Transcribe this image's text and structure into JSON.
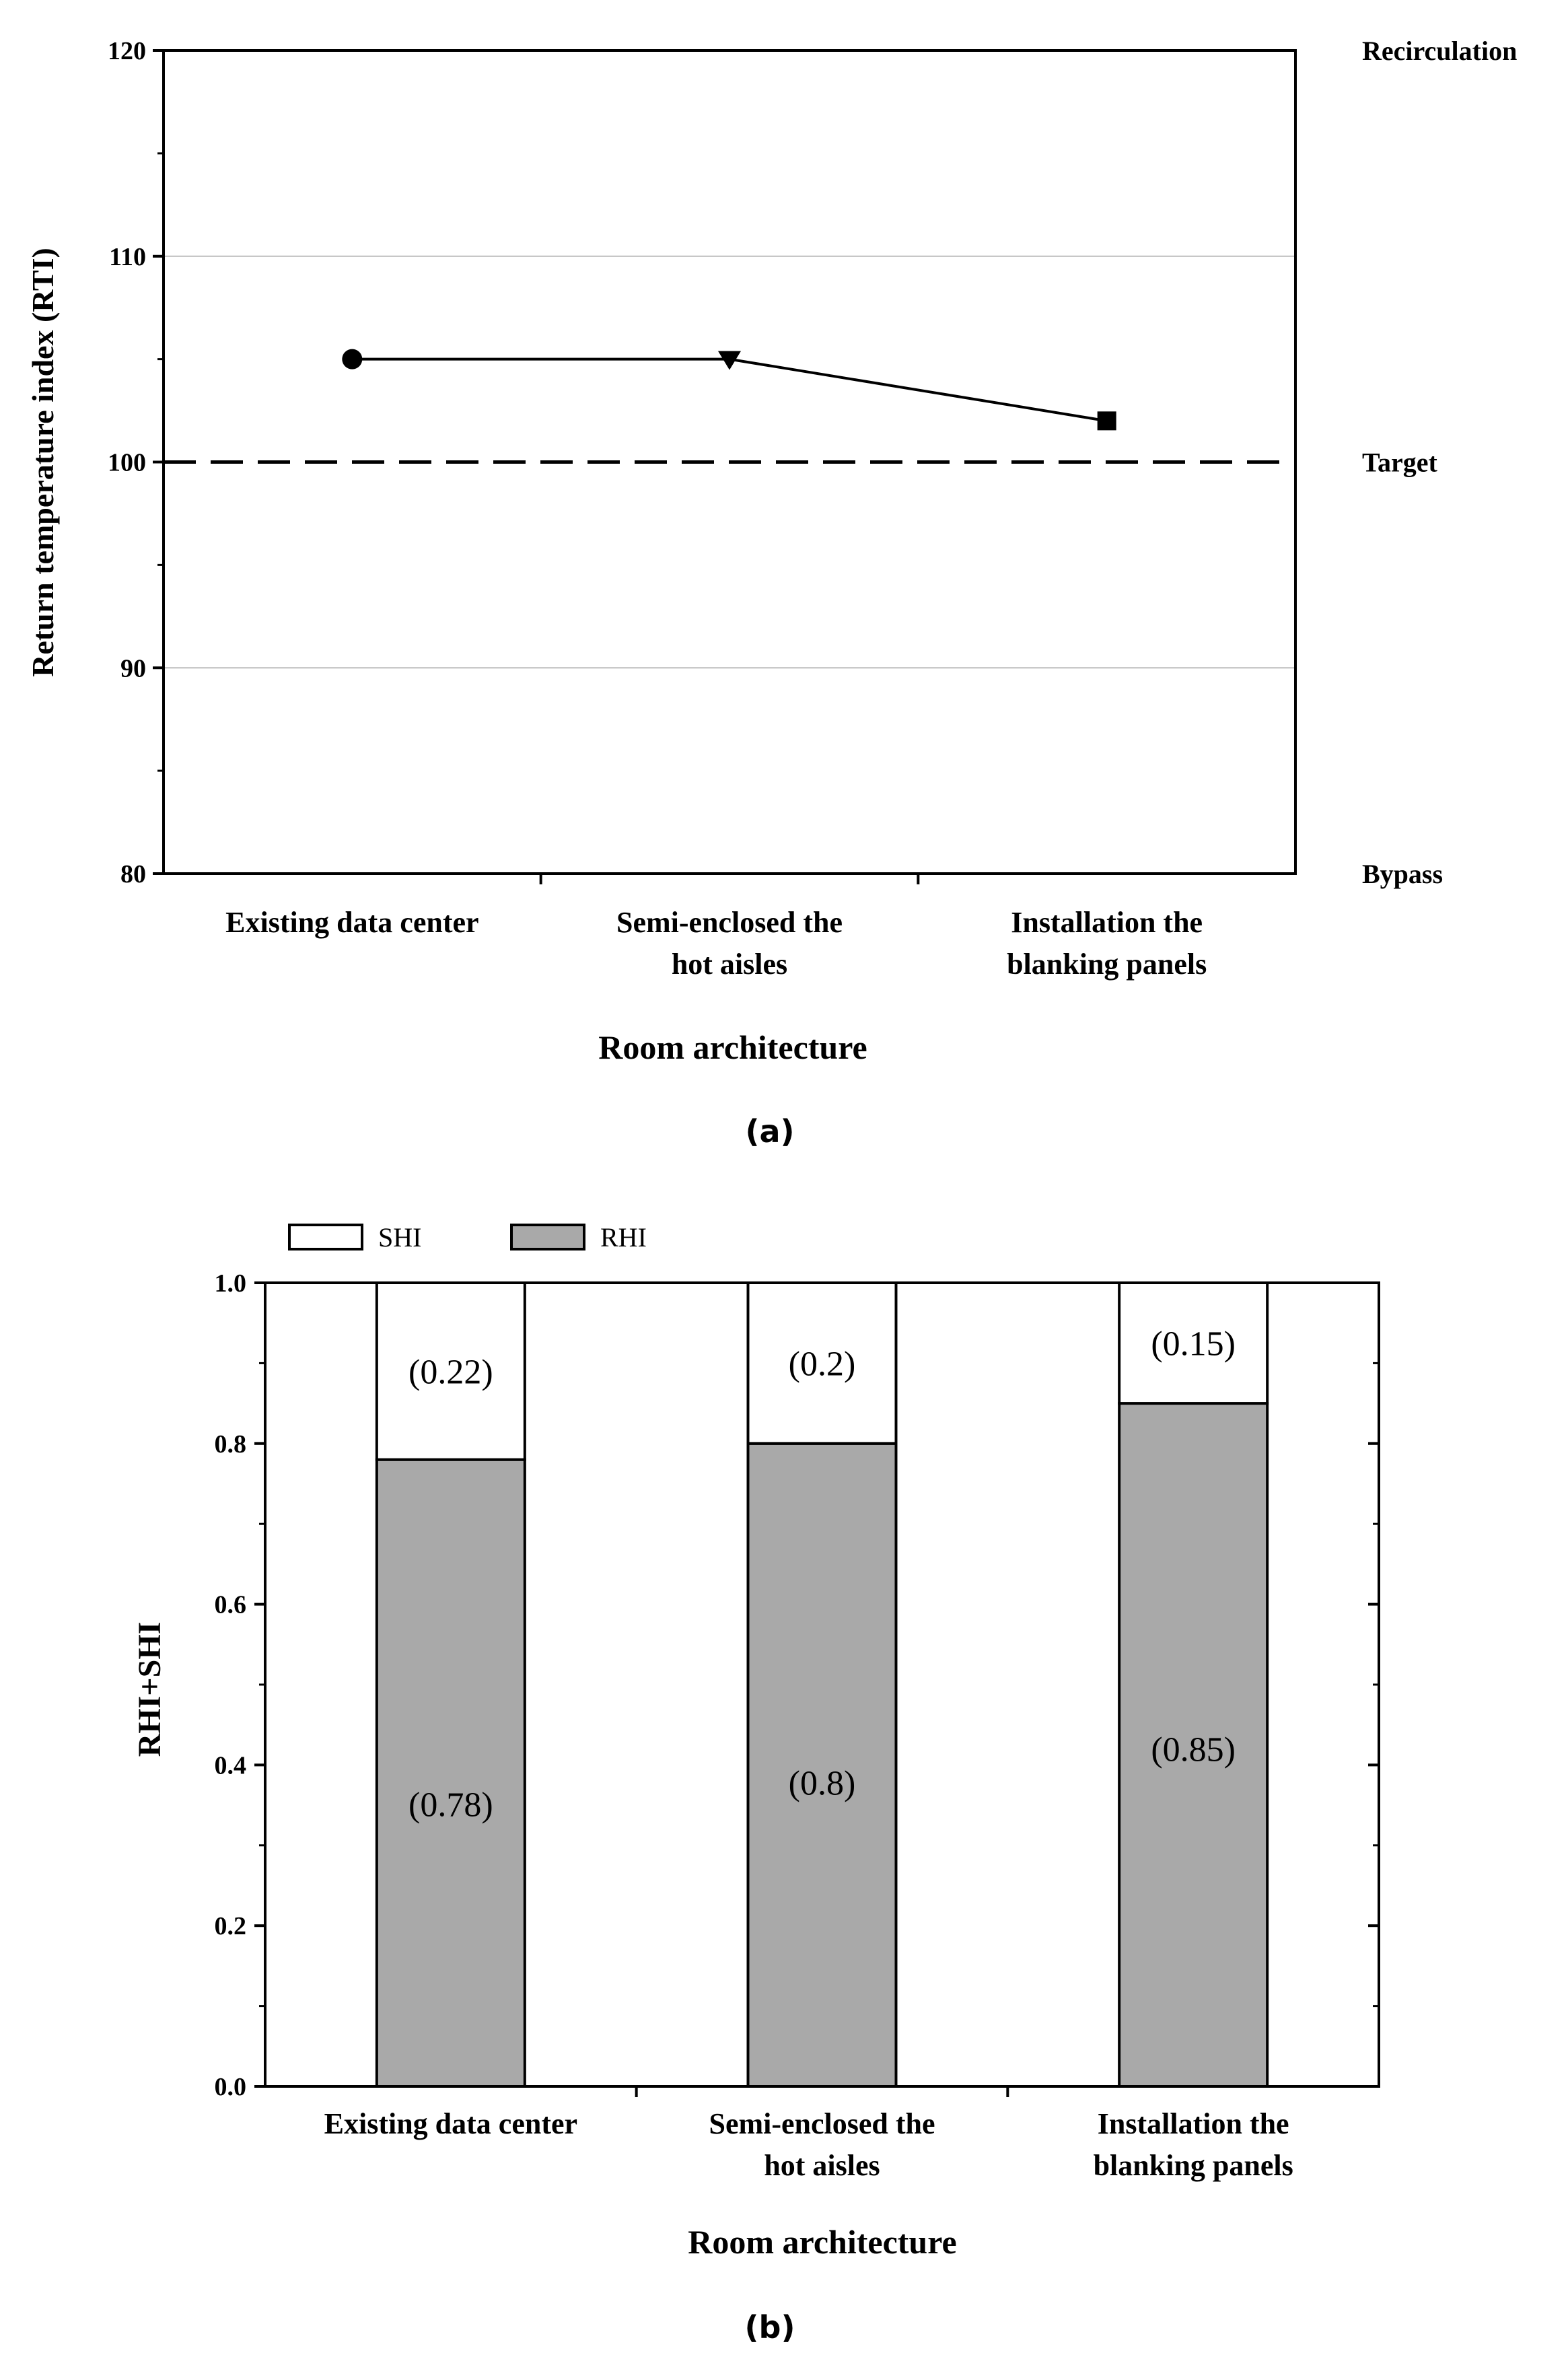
{
  "chart_data": [
    {
      "type": "line",
      "panel_label": "(a)",
      "xlabel": "Room architecture",
      "ylabel": "Return temperature index (RTI)",
      "ylim": [
        80,
        120
      ],
      "yticks": [
        80,
        90,
        100,
        110,
        120
      ],
      "categories": [
        [
          "Existing data center"
        ],
        [
          "Semi-enclosed the",
          "hot aisles"
        ],
        [
          "Installation the",
          "blanking panels"
        ]
      ],
      "series": [
        {
          "name": "RTI",
          "values": [
            105,
            105,
            102
          ],
          "markers": [
            "circle",
            "triangle-down",
            "square"
          ]
        }
      ],
      "reference_line": {
        "value": 100,
        "style": "dashed"
      },
      "gridlines": [
        90,
        110
      ],
      "right_labels": [
        {
          "value": 120,
          "text": "Recirculation"
        },
        {
          "value": 100,
          "text": "Target"
        },
        {
          "value": 80,
          "text": "Bypass"
        }
      ]
    },
    {
      "type": "bar",
      "stacked": true,
      "panel_label": "(b)",
      "xlabel": "Room architecture",
      "ylabel": "RHI+SHI",
      "ylim": [
        0,
        1.0
      ],
      "yticks": [
        "0.0",
        "0.2",
        "0.4",
        "0.6",
        "0.8",
        "1.0"
      ],
      "categories": [
        [
          "Existing data center"
        ],
        [
          "Semi-enclosed the",
          "hot aisles"
        ],
        [
          "Installation the",
          "blanking panels"
        ]
      ],
      "series": [
        {
          "name": "RHI",
          "color": "#a9a9a9",
          "values": [
            0.78,
            0.8,
            0.85
          ],
          "labels": [
            "(0.78)",
            "(0.8)",
            "(0.85)"
          ]
        },
        {
          "name": "SHI",
          "color": "#ffffff",
          "values": [
            0.22,
            0.2,
            0.15
          ],
          "labels": [
            "(0.22)",
            "(0.2)",
            "(0.15)"
          ]
        }
      ],
      "legend": [
        "SHI",
        "RHI"
      ]
    }
  ]
}
